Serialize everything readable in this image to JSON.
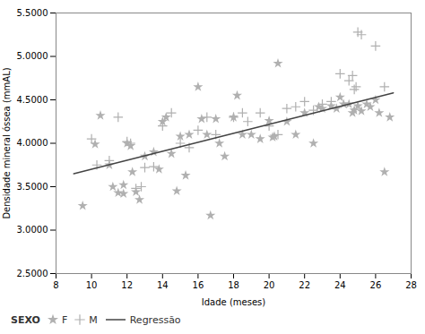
{
  "chart_data": {
    "type": "scatter",
    "xlabel": "Idade (meses)",
    "ylabel": "Densidade mineral óssea (mmAL)",
    "xlim": [
      8,
      28
    ],
    "ylim": [
      2.5,
      5.5
    ],
    "xticks": [
      8,
      10,
      12,
      14,
      16,
      18,
      20,
      22,
      24,
      26,
      28
    ],
    "yticks": [
      {
        "value": 2.5,
        "label": "2.5000"
      },
      {
        "value": 3.0,
        "label": "3.0000"
      },
      {
        "value": 3.5,
        "label": "3.5000"
      },
      {
        "value": 4.0,
        "label": "4.0000"
      },
      {
        "value": 4.5,
        "label": "4.5000"
      },
      {
        "value": 5.0,
        "label": "5.0000"
      },
      {
        "value": 5.5,
        "label": "5.5000"
      }
    ],
    "grid": false,
    "legend": "bottom",
    "legend_title": "SEXO",
    "series": [
      {
        "name": "F",
        "type": "scatter",
        "marker": "star",
        "color": "#b0b0b0",
        "x": [
          9.5,
          10.2,
          10.5,
          11.0,
          11.2,
          11.5,
          11.8,
          11.8,
          12.0,
          12.2,
          12.3,
          12.5,
          12.7,
          13.0,
          13.5,
          13.8,
          14.0,
          14.2,
          14.5,
          14.8,
          15.0,
          15.3,
          15.5,
          16.0,
          16.2,
          16.5,
          16.7,
          17.0,
          17.2,
          17.5,
          18.0,
          18.2,
          18.5,
          19.0,
          19.5,
          20.0,
          20.2,
          20.3,
          20.5,
          21.0,
          21.5,
          22.0,
          22.5,
          22.8,
          23.0,
          23.5,
          23.8,
          24.0,
          24.2,
          24.5,
          24.7,
          24.8,
          25.0,
          25.2,
          25.5,
          25.7,
          26.0,
          26.2,
          26.5,
          26.8
        ],
        "values": [
          3.28,
          3.99,
          4.32,
          3.75,
          3.5,
          3.43,
          3.42,
          3.52,
          4.0,
          3.97,
          3.67,
          3.44,
          3.35,
          3.85,
          3.9,
          3.7,
          4.25,
          4.3,
          3.88,
          3.45,
          4.08,
          3.63,
          4.1,
          4.65,
          4.28,
          4.1,
          3.17,
          4.28,
          4.0,
          3.85,
          4.3,
          4.55,
          4.1,
          4.1,
          4.05,
          4.26,
          4.07,
          4.08,
          4.92,
          4.25,
          4.1,
          4.35,
          4.0,
          4.42,
          4.4,
          4.43,
          4.4,
          4.53,
          4.45,
          4.45,
          4.35,
          4.38,
          4.43,
          4.37,
          4.45,
          4.42,
          4.5,
          4.35,
          3.67,
          4.3
        ]
      },
      {
        "name": "M",
        "type": "scatter",
        "marker": "plus",
        "color": "#b0b0b0",
        "x": [
          10.0,
          10.3,
          11.0,
          11.5,
          12.0,
          12.2,
          12.5,
          12.8,
          13.0,
          13.5,
          14.0,
          14.5,
          15.0,
          15.5,
          16.0,
          16.5,
          17.0,
          18.0,
          18.5,
          18.8,
          19.5,
          20.0,
          20.5,
          21.0,
          21.5,
          22.0,
          22.5,
          23.0,
          23.5,
          24.0,
          24.5,
          24.7,
          24.8,
          24.9,
          25.0,
          25.2,
          26.0,
          26.5
        ],
        "values": [
          4.05,
          3.75,
          3.8,
          4.3,
          4.02,
          4.0,
          3.48,
          3.5,
          3.72,
          3.73,
          4.2,
          4.35,
          4.0,
          3.95,
          4.15,
          4.3,
          4.1,
          4.3,
          4.35,
          4.25,
          4.35,
          4.2,
          4.1,
          4.4,
          4.42,
          4.48,
          4.38,
          4.45,
          4.48,
          4.8,
          4.72,
          4.78,
          4.62,
          4.65,
          5.28,
          5.25,
          5.12,
          4.65
        ]
      },
      {
        "name": "Regressão",
        "type": "line",
        "color": "#444444",
        "x": [
          9,
          27
        ],
        "values": [
          3.65,
          4.58
        ]
      }
    ]
  }
}
